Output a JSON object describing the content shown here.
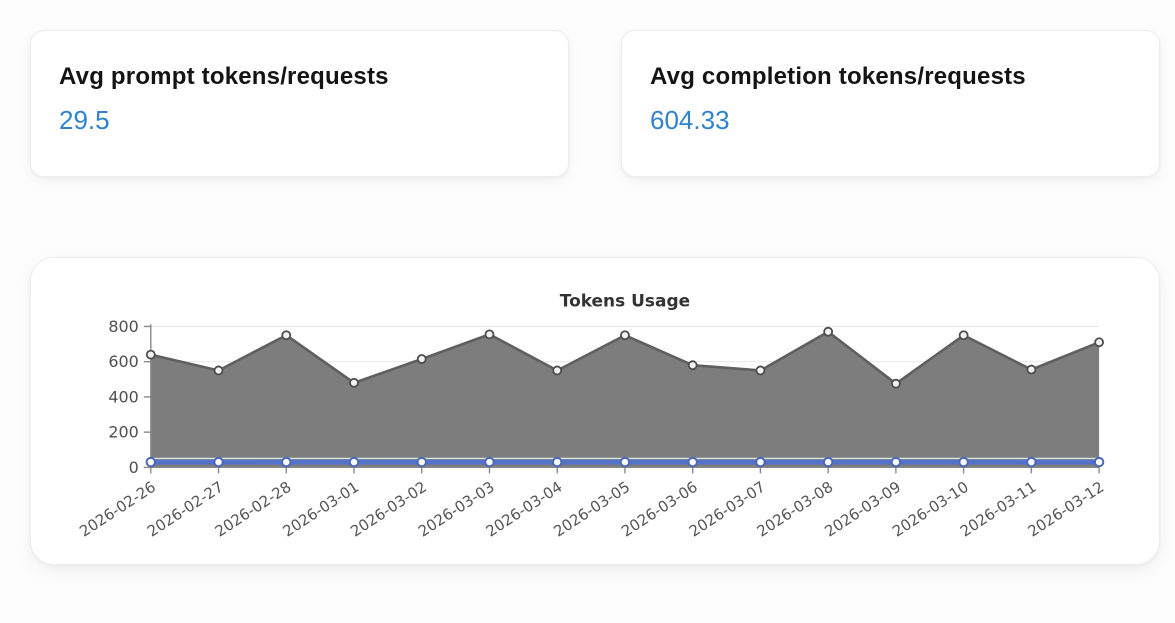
{
  "cards": [
    {
      "title": "Avg prompt tokens/requests",
      "value": "29.5"
    },
    {
      "title": "Avg completion tokens/requests",
      "value": "604.33"
    }
  ],
  "chart_data": {
    "type": "area",
    "title": "Tokens Usage",
    "x": [
      "2026-02-26",
      "2026-02-27",
      "2026-02-28",
      "2026-03-01",
      "2026-03-02",
      "2026-03-03",
      "2026-03-04",
      "2026-03-05",
      "2026-03-06",
      "2026-03-07",
      "2026-03-08",
      "2026-03-09",
      "2026-03-10",
      "2026-03-11",
      "2026-03-12"
    ],
    "series": [
      {
        "name": "gray-area",
        "color": "#5f5f5f",
        "fill": "#7d7d7d",
        "values": [
          640,
          550,
          750,
          480,
          615,
          755,
          550,
          750,
          580,
          550,
          770,
          475,
          750,
          555,
          710
        ]
      },
      {
        "name": "blue-line",
        "color": "#5572c9",
        "values": [
          30,
          30,
          30,
          30,
          30,
          30,
          30,
          30,
          30,
          30,
          30,
          30,
          30,
          30,
          30
        ]
      }
    ],
    "ylim": [
      0,
      800
    ],
    "yticks": [
      0,
      200,
      400,
      600,
      800
    ],
    "xlabel": "",
    "ylabel": "",
    "grid": true,
    "legend_position": "none",
    "x_label_rotation_deg": -33
  },
  "colors": {
    "stat_value": "#3182ce",
    "gridline": "#e8e8e8",
    "axis": "#8a8a8a",
    "blue_marker_stroke": "#4a67be",
    "gray_marker_stroke": "#4d4d4d"
  }
}
